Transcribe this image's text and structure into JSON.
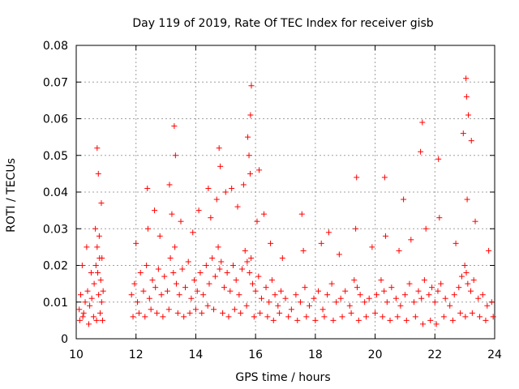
{
  "chart_data": {
    "type": "scatter",
    "title": "Day 119 of 2019, Rate Of TEC Index for receiver gisb",
    "xlabel": "GPS time / hours",
    "ylabel": "ROTI / TECUs",
    "xlim": [
      10,
      24
    ],
    "ylim": [
      0,
      0.08
    ],
    "x_ticks": [
      10,
      12,
      14,
      16,
      18,
      20,
      22,
      24
    ],
    "x_tick_labels": [
      "10",
      "12",
      "14",
      "16",
      "18",
      "20",
      "22",
      "24"
    ],
    "y_ticks": [
      0,
      0.01,
      0.02,
      0.03,
      0.04,
      0.05,
      0.06,
      0.07,
      0.08
    ],
    "y_tick_labels": [
      "0",
      "0.01",
      "0.02",
      "0.03",
      "0.04",
      "0.05",
      "0.06",
      "0.07",
      "0.08"
    ],
    "grid": true,
    "marker": "+",
    "color": "#ff0000",
    "series": [
      {
        "name": "ROTI",
        "x": [
          10.1,
          10.15,
          10.22,
          10.3,
          10.38,
          10.45,
          10.52,
          10.6,
          10.66,
          10.7,
          10.72,
          10.75,
          10.78,
          10.82,
          10.85,
          10.9,
          11.85,
          11.95,
          12.05,
          12.15,
          12.25,
          12.35,
          12.45,
          12.55,
          12.65,
          12.75,
          12.85,
          12.95,
          13.05,
          13.15,
          13.25,
          13.3,
          13.35,
          13.45,
          13.55,
          13.65,
          13.75,
          13.85,
          13.95,
          14.05,
          14.15,
          14.25,
          14.35,
          14.45,
          14.55,
          14.65,
          14.75,
          14.8,
          14.85,
          14.95,
          15.05,
          15.15,
          15.25,
          15.35,
          15.45,
          15.55,
          15.65,
          15.72,
          15.8,
          15.85,
          15.9,
          16.0,
          16.1,
          16.2,
          16.35,
          16.45,
          16.55,
          16.65,
          16.75,
          16.85,
          17.0,
          17.2,
          17.35,
          17.5,
          17.65,
          17.8,
          17.95,
          18.1,
          18.25,
          18.4,
          18.55,
          18.7,
          18.85,
          19.0,
          19.15,
          19.3,
          19.4,
          19.5,
          19.65,
          19.8,
          20.05,
          20.2,
          20.3,
          20.4,
          20.55,
          20.7,
          20.85,
          21.0,
          21.15,
          21.3,
          21.45,
          21.55,
          21.65,
          21.8,
          21.9,
          22.0,
          22.1,
          22.2,
          22.35,
          22.5,
          22.65,
          22.8,
          22.9,
          23.0,
          23.05,
          23.1,
          23.2,
          23.3,
          23.45,
          23.6,
          23.75,
          23.9,
          10.12,
          10.25,
          10.42,
          10.58,
          10.68,
          10.8,
          10.88,
          11.9,
          12.1,
          12.3,
          12.5,
          12.7,
          12.9,
          13.1,
          13.4,
          13.6,
          13.8,
          14.0,
          14.2,
          14.4,
          14.6,
          14.9,
          15.1,
          15.3,
          15.5,
          15.7,
          15.95,
          16.15,
          16.4,
          16.6,
          16.8,
          17.1,
          17.4,
          17.7,
          18.0,
          18.3,
          18.6,
          18.9,
          19.2,
          19.45,
          19.7,
          20.0,
          20.25,
          20.5,
          20.75,
          21.05,
          21.35,
          21.6,
          21.85,
          22.05,
          22.3,
          22.6,
          22.85,
          23.02,
          23.25,
          23.5,
          23.7,
          23.95,
          10.2,
          10.35,
          10.5,
          10.64,
          10.77,
          10.86,
          12.0,
          12.4,
          12.8,
          13.2,
          13.5,
          13.9,
          14.1,
          14.5,
          14.7,
          15.0,
          15.4,
          15.6,
          15.82,
          16.05,
          16.5,
          16.9,
          17.6,
          18.2,
          18.8,
          19.35,
          19.9,
          20.35,
          20.8,
          21.2,
          21.7,
          22.15,
          22.7,
          23.08,
          23.35,
          23.8,
          10.7,
          10.74,
          10.84,
          13.28,
          13.32,
          14.78,
          14.82,
          15.74,
          15.78,
          15.83,
          15.86,
          16.12,
          19.38,
          20.32,
          21.58,
          22.12,
          22.95,
          23.04,
          23.06,
          23.12,
          23.22,
          12.38,
          12.62,
          13.12,
          14.42,
          15.2,
          16.28,
          17.55,
          18.45,
          20.95,
          21.52
        ],
        "y": [
          0.008,
          0.012,
          0.006,
          0.01,
          0.013,
          0.009,
          0.011,
          0.015,
          0.02,
          0.025,
          0.018,
          0.012,
          0.022,
          0.016,
          0.01,
          0.013,
          0.012,
          0.015,
          0.01,
          0.018,
          0.013,
          0.02,
          0.011,
          0.016,
          0.014,
          0.019,
          0.012,
          0.017,
          0.013,
          0.022,
          0.018,
          0.025,
          0.015,
          0.012,
          0.019,
          0.014,
          0.021,
          0.011,
          0.016,
          0.013,
          0.018,
          0.012,
          0.02,
          0.015,
          0.022,
          0.017,
          0.025,
          0.019,
          0.021,
          0.014,
          0.018,
          0.013,
          0.02,
          0.016,
          0.012,
          0.019,
          0.024,
          0.021,
          0.018,
          0.022,
          0.015,
          0.013,
          0.017,
          0.011,
          0.014,
          0.01,
          0.016,
          0.012,
          0.009,
          0.013,
          0.011,
          0.008,
          0.012,
          0.01,
          0.014,
          0.009,
          0.011,
          0.013,
          0.008,
          0.012,
          0.015,
          0.01,
          0.011,
          0.013,
          0.009,
          0.016,
          0.014,
          0.012,
          0.01,
          0.011,
          0.012,
          0.016,
          0.013,
          0.01,
          0.014,
          0.011,
          0.009,
          0.012,
          0.015,
          0.01,
          0.013,
          0.011,
          0.016,
          0.012,
          0.014,
          0.01,
          0.013,
          0.015,
          0.011,
          0.009,
          0.012,
          0.014,
          0.017,
          0.02,
          0.018,
          0.015,
          0.013,
          0.016,
          0.011,
          0.012,
          0.009,
          0.01,
          0.005,
          0.007,
          0.004,
          0.006,
          0.005,
          0.007,
          0.005,
          0.006,
          0.007,
          0.006,
          0.008,
          0.007,
          0.006,
          0.008,
          0.007,
          0.006,
          0.007,
          0.008,
          0.007,
          0.009,
          0.008,
          0.007,
          0.006,
          0.008,
          0.007,
          0.009,
          0.006,
          0.007,
          0.006,
          0.005,
          0.007,
          0.006,
          0.005,
          0.006,
          0.005,
          0.006,
          0.005,
          0.006,
          0.007,
          0.005,
          0.006,
          0.007,
          0.006,
          0.005,
          0.006,
          0.005,
          0.006,
          0.004,
          0.005,
          0.004,
          0.006,
          0.005,
          0.007,
          0.006,
          0.007,
          0.006,
          0.005,
          0.006,
          0.02,
          0.025,
          0.018,
          0.03,
          0.028,
          0.022,
          0.026,
          0.03,
          0.028,
          0.034,
          0.032,
          0.029,
          0.035,
          0.033,
          0.038,
          0.04,
          0.036,
          0.042,
          0.045,
          0.032,
          0.026,
          0.022,
          0.024,
          0.026,
          0.023,
          0.03,
          0.025,
          0.028,
          0.024,
          0.027,
          0.03,
          0.033,
          0.026,
          0.038,
          0.032,
          0.024,
          0.052,
          0.045,
          0.037,
          0.058,
          0.05,
          0.052,
          0.047,
          0.055,
          0.05,
          0.061,
          0.069,
          0.046,
          0.044,
          0.044,
          0.059,
          0.049,
          0.056,
          0.071,
          0.066,
          0.061,
          0.054,
          0.041,
          0.035,
          0.042,
          0.041,
          0.041,
          0.034,
          0.034,
          0.029,
          0.038,
          0.051
        ]
      }
    ]
  }
}
